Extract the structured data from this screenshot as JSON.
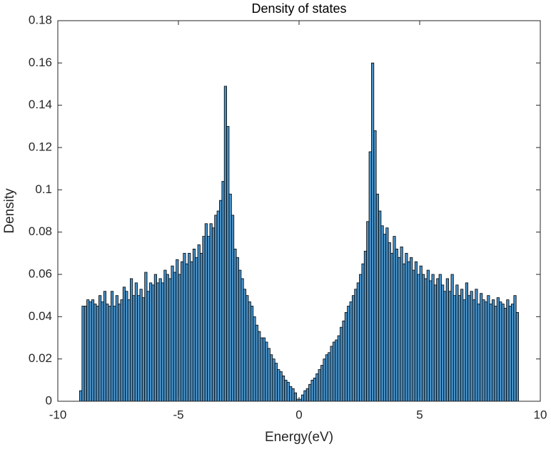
{
  "chart_data": {
    "type": "histogram",
    "title": "Density of states",
    "x_label": "Energy(eV)",
    "y_label": "Density",
    "color": "#4a92c8",
    "edgecolor": "#000000",
    "bins": [
      -9.1,
      -9,
      -8.9,
      -8.8,
      -8.7,
      -8.6,
      -8.5,
      -8.4,
      -8.3,
      -8.2,
      -8.1,
      -8,
      -7.9,
      -7.8,
      -7.7,
      -7.6,
      -7.5,
      -7.4,
      -7.3,
      -7.2,
      -7.1,
      -7,
      -6.9,
      -6.8,
      -6.7,
      -6.6,
      -6.5,
      -6.4,
      -6.3,
      -6.2,
      -6.1,
      -6,
      -5.9,
      -5.8,
      -5.7,
      -5.6,
      -5.5,
      -5.4,
      -5.3,
      -5.2,
      -5.1,
      -5,
      -4.9,
      -4.8,
      -4.7,
      -4.6,
      -4.5,
      -4.4,
      -4.3,
      -4.2,
      -4.1,
      -4,
      -3.9,
      -3.8,
      -3.7,
      -3.6,
      -3.5,
      -3.4,
      -3.3,
      -3.2,
      -3.1,
      -3,
      -2.9,
      -2.8,
      -2.7,
      -2.6,
      -2.5,
      -2.4,
      -2.3,
      -2.2,
      -2.1,
      -2,
      -1.9,
      -1.8,
      -1.7,
      -1.6,
      -1.5,
      -1.4,
      -1.3,
      -1.2,
      -1.1,
      -1,
      -0.9,
      -0.8,
      -0.7,
      -0.6,
      -0.5,
      -0.4,
      -0.3,
      -0.2,
      -0.1,
      0,
      0.1,
      0.2,
      0.3,
      0.4,
      0.5,
      0.6,
      0.7,
      0.8,
      0.9,
      1,
      1.1,
      1.2,
      1.3,
      1.4,
      1.5,
      1.6,
      1.7,
      1.8,
      1.9,
      2,
      2.1,
      2.2,
      2.3,
      2.4,
      2.5,
      2.6,
      2.7,
      2.8,
      2.9,
      3,
      3.1,
      3.2,
      3.3,
      3.4,
      3.5,
      3.6,
      3.7,
      3.8,
      3.9,
      4,
      4.1,
      4.2,
      4.3,
      4.4,
      4.5,
      4.6,
      4.7,
      4.8,
      4.9,
      5,
      5.1,
      5.2,
      5.3,
      5.4,
      5.5,
      5.6,
      5.7,
      5.8,
      5.9,
      6,
      6.1,
      6.2,
      6.3,
      6.4,
      6.5,
      6.6,
      6.7,
      6.8,
      6.9,
      7,
      7.1,
      7.2,
      7.3,
      7.4,
      7.5,
      7.6,
      7.7,
      7.8,
      7.9,
      8,
      8.1,
      8.2,
      8.3,
      8.4,
      8.5,
      8.6,
      8.7,
      8.8,
      8.9,
      9,
      9.1
    ],
    "values": [
      0.005,
      0.045,
      0.045,
      0.048,
      0.047,
      0.048,
      0.046,
      0.045,
      0.05,
      0.047,
      0.052,
      0.046,
      0.045,
      0.052,
      0.045,
      0.05,
      0.046,
      0.048,
      0.054,
      0.052,
      0.048,
      0.058,
      0.05,
      0.056,
      0.05,
      0.053,
      0.049,
      0.061,
      0.052,
      0.056,
      0.055,
      0.06,
      0.056,
      0.058,
      0.056,
      0.062,
      0.06,
      0.058,
      0.064,
      0.061,
      0.067,
      0.06,
      0.066,
      0.07,
      0.065,
      0.07,
      0.066,
      0.072,
      0.068,
      0.074,
      0.07,
      0.078,
      0.084,
      0.078,
      0.084,
      0.082,
      0.088,
      0.09,
      0.095,
      0.104,
      0.149,
      0.13,
      0.098,
      0.088,
      0.072,
      0.068,
      0.062,
      0.058,
      0.053,
      0.05,
      0.047,
      0.045,
      0.04,
      0.036,
      0.033,
      0.03,
      0.03,
      0.028,
      0.025,
      0.022,
      0.02,
      0.018,
      0.015,
      0.014,
      0.012,
      0.01,
      0.009,
      0.007,
      0.006,
      0.004,
      0.001,
      0.001,
      0.003,
      0.005,
      0.006,
      0.008,
      0.01,
      0.011,
      0.013,
      0.015,
      0.017,
      0.02,
      0.022,
      0.023,
      0.026,
      0.028,
      0.029,
      0.031,
      0.035,
      0.038,
      0.042,
      0.045,
      0.047,
      0.05,
      0.053,
      0.056,
      0.06,
      0.065,
      0.071,
      0.085,
      0.118,
      0.16,
      0.128,
      0.098,
      0.09,
      0.083,
      0.079,
      0.082,
      0.075,
      0.07,
      0.078,
      0.072,
      0.068,
      0.073,
      0.065,
      0.07,
      0.066,
      0.068,
      0.062,
      0.066,
      0.06,
      0.064,
      0.06,
      0.058,
      0.062,
      0.057,
      0.06,
      0.055,
      0.058,
      0.06,
      0.055,
      0.052,
      0.058,
      0.052,
      0.06,
      0.05,
      0.055,
      0.05,
      0.053,
      0.048,
      0.056,
      0.05,
      0.052,
      0.048,
      0.053,
      0.046,
      0.051,
      0.048,
      0.047,
      0.05,
      0.046,
      0.048,
      0.045,
      0.049,
      0.047,
      0.046,
      0.044,
      0.048,
      0.045,
      0.046,
      0.05,
      0.042
    ],
    "xlim": [
      -10,
      10
    ],
    "ylim": [
      0,
      0.18
    ],
    "xticks": [
      -10,
      -5,
      0,
      5,
      10
    ],
    "yticks": [
      0,
      0.02,
      0.04,
      0.06,
      0.08,
      0.1,
      0.12,
      0.14,
      0.16,
      0.18
    ],
    "box": true
  }
}
